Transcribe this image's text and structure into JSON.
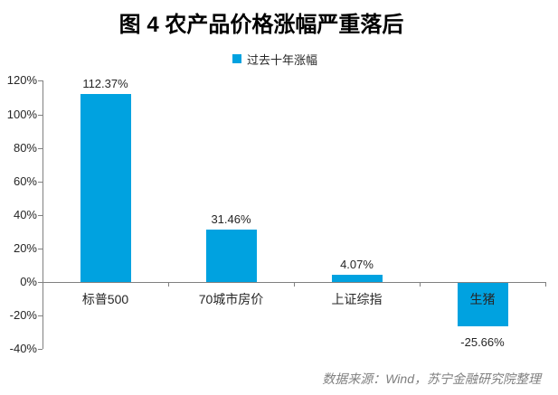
{
  "page": {
    "title": "图 4 农产品价格涨幅严重落后",
    "source_note": "数据来源：Wind，苏宁金融研究院整理"
  },
  "legend": {
    "label": "过去十年涨幅"
  },
  "colors": {
    "bar": "#00A2E0",
    "axis": "#808080",
    "label_text": "#262626",
    "title_text": "#000000",
    "footer_text": "#7F7F7F"
  },
  "chart_data": {
    "type": "bar",
    "title": "图 4 农产品价格涨幅严重落后",
    "legend": [
      "过去十年涨幅"
    ],
    "legend_position": "top",
    "categories": [
      "标普500",
      "70城市房价",
      "上证综指",
      "生猪"
    ],
    "values": [
      112.37,
      31.46,
      4.07,
      -25.66
    ],
    "value_labels": [
      "112.37%",
      "31.46%",
      "4.07%",
      "-25.66%"
    ],
    "xlabel": "",
    "ylabel": "",
    "ylim": [
      -40,
      120
    ],
    "ytick_step": 20,
    "yticks": [
      120,
      100,
      80,
      60,
      40,
      20,
      0,
      -20,
      -40
    ],
    "ytick_labels": [
      "120%",
      "100%",
      "80%",
      "60%",
      "40%",
      "20%",
      "0%",
      "-20%",
      "-40%"
    ],
    "grid": false
  }
}
